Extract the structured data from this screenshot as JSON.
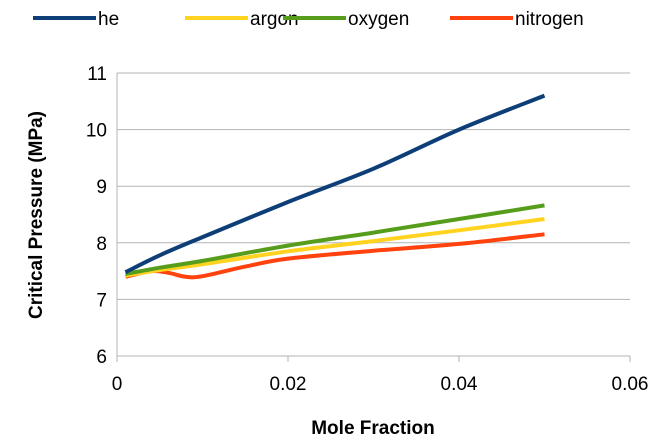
{
  "chart_data": {
    "type": "line",
    "xlabel": "Mole Fraction",
    "ylabel": "Critical Pressure (MPa)",
    "xlim": [
      0,
      0.06
    ],
    "ylim": [
      6,
      11
    ],
    "x_ticks": [
      0,
      0.02,
      0.04,
      0.06
    ],
    "x_tick_labels": [
      "0",
      "0.02",
      "0.04",
      "0.06"
    ],
    "y_ticks": [
      6,
      7,
      8,
      9,
      10,
      11
    ],
    "y_tick_labels": [
      "6",
      "7",
      "8",
      "9",
      "10",
      "11"
    ],
    "grid": "horizontal",
    "legend_position": "top",
    "series": [
      {
        "name": "he",
        "color": "#0e3e78",
        "x": [
          0.001,
          0.005,
          0.01,
          0.02,
          0.03,
          0.04,
          0.05
        ],
        "y": [
          7.48,
          7.78,
          8.1,
          8.72,
          9.31,
          10.0,
          10.6
        ]
      },
      {
        "name": "argon",
        "color": "#ffd320",
        "x": [
          0.001,
          0.005,
          0.01,
          0.02,
          0.03,
          0.04,
          0.05
        ],
        "y": [
          7.42,
          7.52,
          7.62,
          7.85,
          8.03,
          8.22,
          8.42
        ]
      },
      {
        "name": "oxygen",
        "color": "#579d1c",
        "x": [
          0.001,
          0.005,
          0.01,
          0.02,
          0.03,
          0.04,
          0.05
        ],
        "y": [
          7.45,
          7.56,
          7.68,
          7.95,
          8.18,
          8.42,
          8.66
        ]
      },
      {
        "name": "nitrogen",
        "color": "#ff420e",
        "x": [
          0.001,
          0.004,
          0.006,
          0.008,
          0.01,
          0.015,
          0.02,
          0.03,
          0.04,
          0.05
        ],
        "y": [
          7.4,
          7.5,
          7.47,
          7.4,
          7.41,
          7.58,
          7.72,
          7.86,
          7.98,
          8.15
        ]
      }
    ]
  }
}
